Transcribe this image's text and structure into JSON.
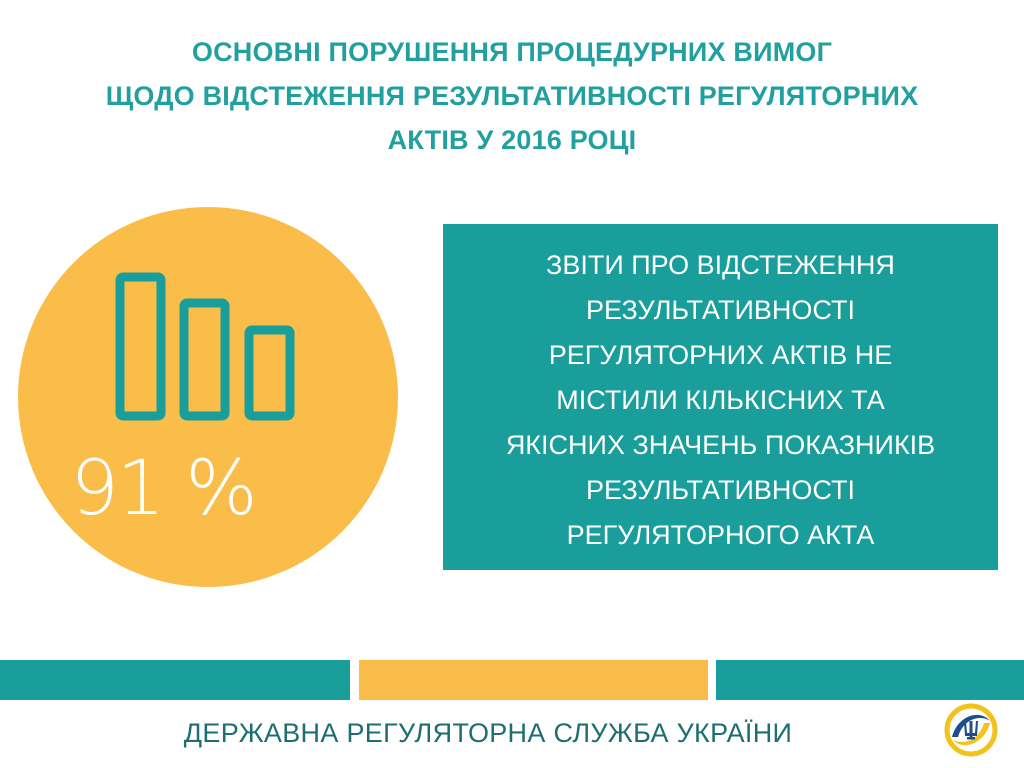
{
  "title": {
    "lines": [
      "ОСНОВНІ ПОРУШЕННЯ ПРОЦЕДУРНИХ ВИМОГ",
      "ЩОДО ВІДСТЕЖЕННЯ РЕЗУЛЬТАТИВНОСТІ РЕГУЛЯТОРНИХ",
      "АКТІВ У 2016 РОЦІ"
    ]
  },
  "stat": {
    "value": "91 %",
    "icon": "bar-chart-icon"
  },
  "info": {
    "lines": [
      "ЗВІТИ ПРО ВІДСТЕЖЕННЯ",
      "РЕЗУЛЬТАТИВНОСТІ",
      "РЕГУЛЯТОРНИХ АКТІВ НЕ",
      "МІСТИЛИ КІЛЬКІСНИХ ТА",
      "ЯКІСНИХ ЗНАЧЕНЬ ПОКАЗНИКІВ",
      "РЕЗУЛЬТАТИВНОСТІ",
      "РЕГУЛЯТОРНОГО АКТА"
    ]
  },
  "footer": {
    "org_name": "ДЕРЖАВНА РЕГУЛЯТОРНА СЛУЖБА УКРАЇНИ",
    "logo": "dрs-emblem-logo"
  },
  "colors": {
    "teal": "#1a9e9b",
    "yellow": "#fbbd4a",
    "title_teal": "#22a0a0",
    "footer_text": "#1d6e72",
    "white": "#ffffff"
  }
}
